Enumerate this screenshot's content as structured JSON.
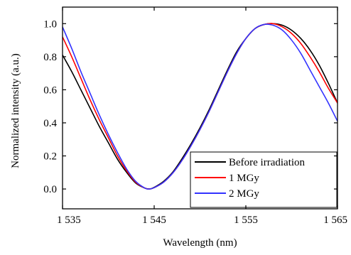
{
  "chart_data": {
    "type": "line",
    "title": "",
    "xlabel": "Wavelength (nm)",
    "ylabel": "Normalized intensity (a.u.)",
    "xlim": [
      1535,
      1565
    ],
    "ylim": [
      -0.12,
      1.1
    ],
    "x_ticks": [
      1535,
      1545,
      1555,
      1565
    ],
    "x_tick_labels": [
      "1 535",
      "1 545",
      "1 555",
      "1 565"
    ],
    "y_ticks": [
      0.0,
      0.2,
      0.4,
      0.6,
      0.8,
      1.0
    ],
    "y_tick_labels": [
      "0.0",
      "0.2",
      "0.4",
      "0.6",
      "0.8",
      "1.0"
    ],
    "grid": false,
    "legend_position": "bottom-right",
    "series": [
      {
        "name": "Before irradiation",
        "color": "#000000",
        "x": [
          1535,
          1536,
          1537,
          1538,
          1539,
          1540,
          1541,
          1542,
          1543,
          1544,
          1544.5,
          1545,
          1546,
          1547,
          1548,
          1549,
          1550,
          1551,
          1552,
          1553,
          1554,
          1555,
          1556,
          1557,
          1558,
          1559,
          1560,
          1561,
          1562,
          1563,
          1564,
          1565
        ],
        "y": [
          0.81,
          0.71,
          0.6,
          0.49,
          0.38,
          0.28,
          0.18,
          0.1,
          0.035,
          0.005,
          0.0,
          0.01,
          0.045,
          0.1,
          0.18,
          0.27,
          0.37,
          0.48,
          0.6,
          0.72,
          0.83,
          0.91,
          0.97,
          0.995,
          1.0,
          0.99,
          0.96,
          0.91,
          0.84,
          0.75,
          0.64,
          0.52
        ]
      },
      {
        "name": "1 MGy",
        "color": "#ff0000",
        "x": [
          1535,
          1536,
          1537,
          1538,
          1539,
          1540,
          1541,
          1542,
          1543,
          1544,
          1544.5,
          1545,
          1546,
          1547,
          1548,
          1549,
          1550,
          1551,
          1552,
          1553,
          1554,
          1555,
          1556,
          1557,
          1558,
          1559,
          1560,
          1561,
          1562,
          1563,
          1564,
          1565
        ],
        "y": [
          0.92,
          0.8,
          0.67,
          0.54,
          0.42,
          0.31,
          0.2,
          0.11,
          0.04,
          0.005,
          0.0,
          0.008,
          0.04,
          0.095,
          0.17,
          0.26,
          0.36,
          0.47,
          0.59,
          0.71,
          0.82,
          0.91,
          0.97,
          0.995,
          1.0,
          0.98,
          0.94,
          0.88,
          0.8,
          0.71,
          0.61,
          0.52
        ]
      },
      {
        "name": "2 MGy",
        "color": "#3333ff",
        "x": [
          1535,
          1536,
          1537,
          1538,
          1539,
          1540,
          1541,
          1542,
          1543,
          1544,
          1544.5,
          1545,
          1546,
          1547,
          1548,
          1549,
          1550,
          1551,
          1552,
          1553,
          1554,
          1555,
          1556,
          1557,
          1558,
          1559,
          1560,
          1561,
          1562,
          1563,
          1564,
          1565
        ],
        "y": [
          0.98,
          0.85,
          0.71,
          0.58,
          0.45,
          0.33,
          0.22,
          0.12,
          0.045,
          0.005,
          0.0,
          0.008,
          0.04,
          0.095,
          0.17,
          0.26,
          0.36,
          0.47,
          0.59,
          0.71,
          0.82,
          0.91,
          0.97,
          0.995,
          0.99,
          0.96,
          0.9,
          0.82,
          0.72,
          0.62,
          0.52,
          0.41
        ]
      }
    ]
  }
}
